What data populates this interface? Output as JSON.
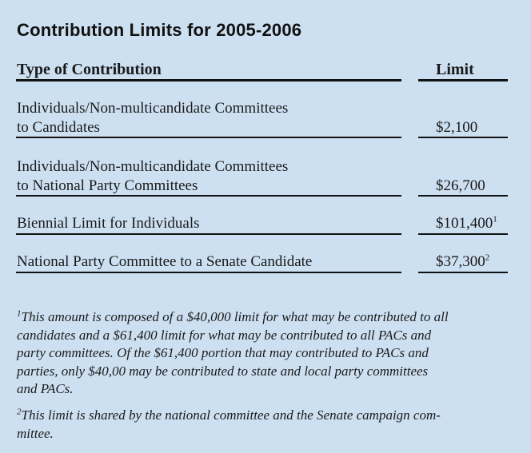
{
  "title": "Contribution Limits for 2005-2006",
  "columns": {
    "type": "Type of Contribution",
    "limit": "Limit"
  },
  "rows": [
    {
      "line1": "Individuals/Non-multicandidate Committees",
      "line2": "to Candidates",
      "limit": "$2,100",
      "sup": ""
    },
    {
      "line1": "Individuals/Non-multicandidate Committees",
      "line2": "to National Party Committees",
      "limit": "$26,700",
      "sup": ""
    },
    {
      "line1": "Biennial Limit for Individuals",
      "line2": "",
      "limit": "$101,400",
      "sup": "1"
    },
    {
      "line1": "National Party Committee to a Senate Candidate",
      "line2": "",
      "limit": "$37,300",
      "sup": "2"
    }
  ],
  "footnotes": [
    {
      "mark": "1",
      "lines": [
        "This amount is composed of a $40,000 limit for what may be contributed to all",
        "candidates and a $61,400 limit for what may be contributed to all PACs and",
        "party committees. Of the $61,400 portion that may contributed to PACs and",
        "parties, only $40,00 may be contributed to state and local party committees",
        "and PACs."
      ]
    },
    {
      "mark": "2",
      "lines": [
        "This limit is shared by the national committee and the Senate campaign com-",
        "mittee."
      ]
    }
  ]
}
